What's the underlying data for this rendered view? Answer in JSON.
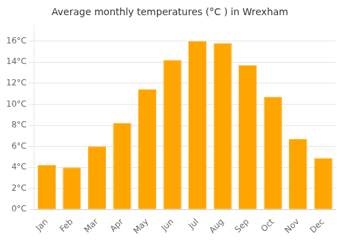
{
  "chart_data": {
    "type": "bar",
    "title": "Average monthly temperatures (°C ) in Wrexham",
    "categories": [
      "Jan",
      "Feb",
      "Mar",
      "Apr",
      "May",
      "Jun",
      "Jul",
      "Aug",
      "Sep",
      "Oct",
      "Nov",
      "Dec"
    ],
    "values": [
      4.2,
      4.0,
      6.0,
      8.2,
      11.4,
      14.2,
      16.0,
      15.8,
      13.7,
      10.7,
      6.7,
      4.9
    ],
    "color": "#FFA500",
    "ylim": [
      0,
      17.5
    ],
    "yticks": [
      {
        "value": 0,
        "label": "0°C"
      },
      {
        "value": 2,
        "label": "2°C"
      },
      {
        "value": 4,
        "label": "4°C"
      },
      {
        "value": 6,
        "label": "6°C"
      },
      {
        "value": 8,
        "label": "8°C"
      },
      {
        "value": 10,
        "label": "10°C"
      },
      {
        "value": 12,
        "label": "12°C"
      },
      {
        "value": 14,
        "label": "14°C"
      },
      {
        "value": 16,
        "label": "16°C"
      }
    ],
    "grid": true
  }
}
